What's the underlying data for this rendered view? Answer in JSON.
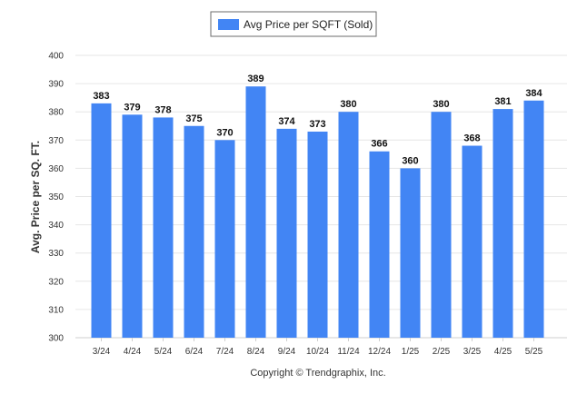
{
  "chart_data": {
    "type": "bar",
    "categories": [
      "3/24",
      "4/24",
      "5/24",
      "6/24",
      "7/24",
      "8/24",
      "9/24",
      "10/24",
      "11/24",
      "12/24",
      "1/25",
      "2/25",
      "3/25",
      "4/25",
      "5/25"
    ],
    "series": [
      {
        "name": "Avg Price per SQFT (Sold)",
        "values": [
          383,
          379,
          378,
          375,
          370,
          389,
          374,
          373,
          380,
          366,
          360,
          380,
          368,
          381,
          384
        ],
        "color": "#4285f4"
      }
    ],
    "title": "",
    "xlabel": "",
    "ylabel": "Avg. Price per SQ. FT.",
    "ylim": [
      300,
      400
    ],
    "yticks": [
      300,
      310,
      320,
      330,
      340,
      350,
      360,
      370,
      380,
      390,
      400
    ],
    "grid": true,
    "legend_position": "top-center",
    "data_labels": true,
    "footer": "Copyright © Trendgraphix, Inc."
  }
}
